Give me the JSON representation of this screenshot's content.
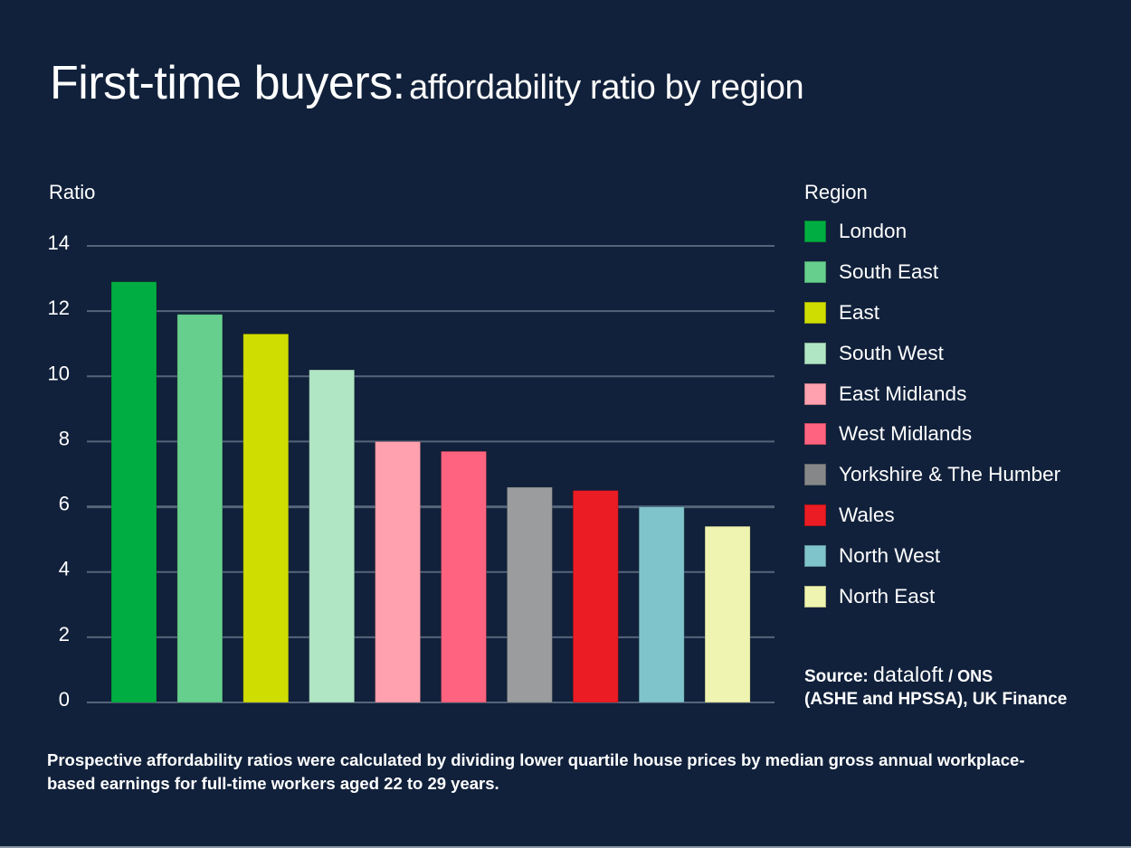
{
  "title": {
    "main": "First-time buyers:",
    "sub": "affordability ratio by region"
  },
  "colors": {
    "background": "#11213b",
    "gridline": "#56647a",
    "text": "#ffffff"
  },
  "chart_data": {
    "type": "bar",
    "title": "First-time buyers: affordability ratio by region",
    "xlabel": "",
    "ylabel": "Ratio",
    "ylim": [
      0,
      14
    ],
    "yticks": [
      0,
      2,
      4,
      6,
      8,
      10,
      12,
      14
    ],
    "grid": true,
    "legend_title": "Region",
    "legend_position": "right",
    "categories": [
      "London",
      "South East",
      "East",
      "South West",
      "East Midlands",
      "West Midlands",
      "Yorkshire & The Humber",
      "Wales",
      "North West",
      "North East"
    ],
    "values": [
      12.9,
      11.9,
      11.3,
      10.2,
      8.0,
      7.7,
      6.6,
      6.5,
      6.0,
      5.4
    ],
    "bar_colors": [
      "#00ad42",
      "#66cf8e",
      "#d0dd00",
      "#b1e6c5",
      "#ffa1ae",
      "#ff637f",
      "#9a9c9e",
      "#ec1c24",
      "#80c4cb",
      "#eff5b0"
    ],
    "legend_colors": [
      "#00ad42",
      "#66cf8e",
      "#d0dd00",
      "#b1e6c5",
      "#ffa1ae",
      "#ff637f",
      "#858789",
      "#ec1c24",
      "#80c4cb",
      "#eff5b0"
    ]
  },
  "source": {
    "prefix": "Source:",
    "brand": "dataloft",
    "suffix": "/ ONS",
    "line2": "(ASHE and HPSSA), UK Finance"
  },
  "footnote": "Prospective affordability ratios were calculated by dividing lower quartile house prices by median gross annual workplace-based earnings for full-time workers aged 22 to 29 years."
}
